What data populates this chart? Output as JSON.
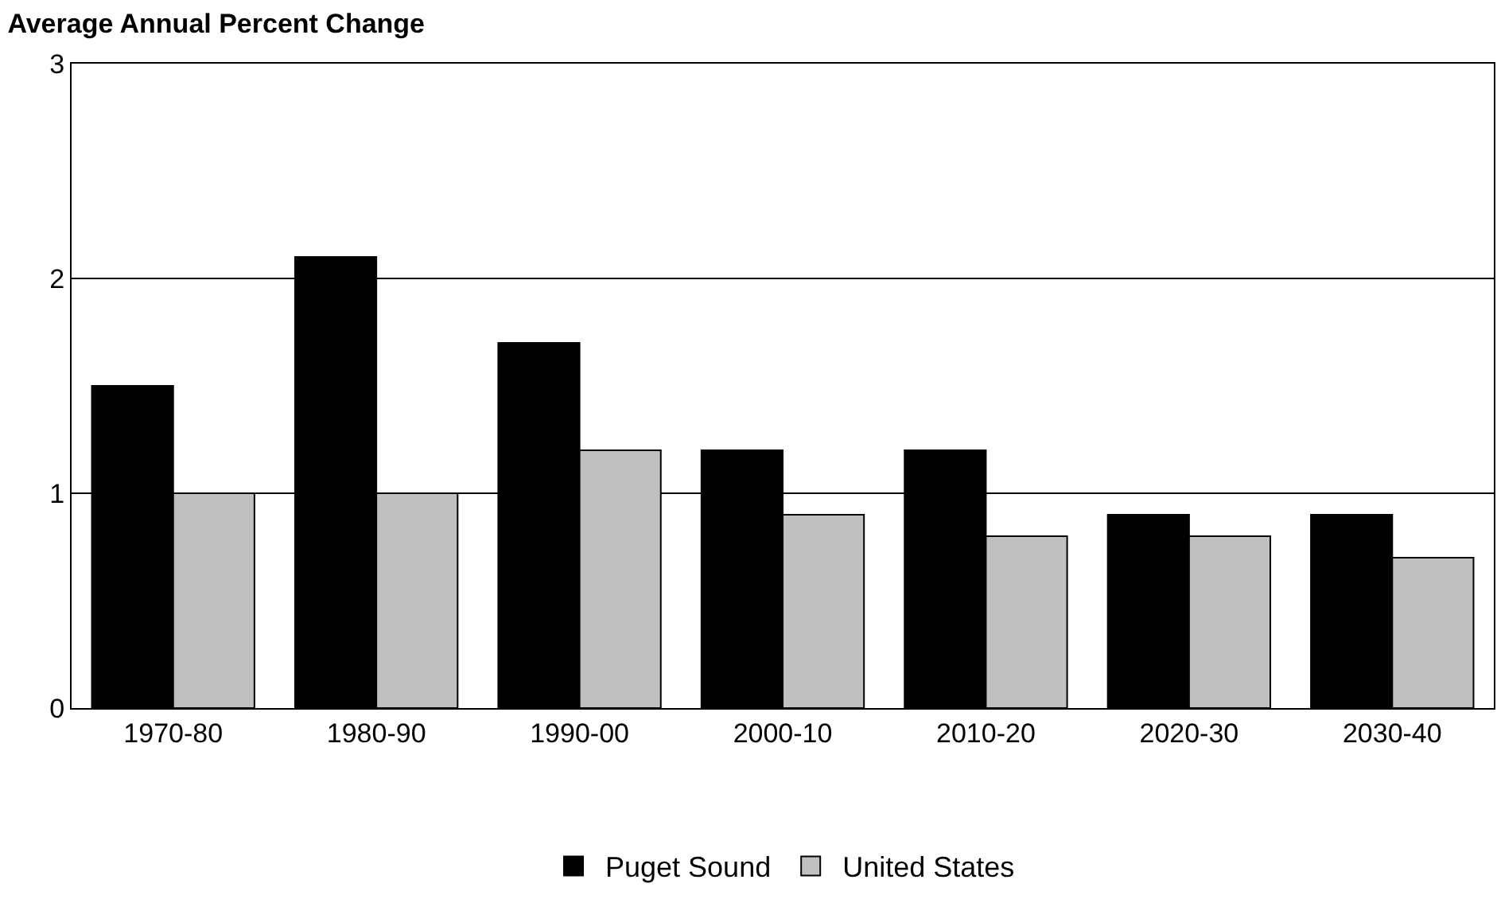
{
  "chart_data": {
    "type": "bar",
    "title": "Average Annual Percent Change",
    "categories": [
      "1970-80",
      "1980-90",
      "1990-00",
      "2000-10",
      "2010-20",
      "2020-30",
      "2030-40"
    ],
    "series": [
      {
        "name": "Puget Sound",
        "color": "#000000",
        "values": [
          1.5,
          2.1,
          1.7,
          1.2,
          1.2,
          0.9,
          0.9
        ]
      },
      {
        "name": "United States",
        "color": "#c0c0c0",
        "values": [
          1.0,
          1.0,
          1.2,
          0.9,
          0.8,
          0.8,
          0.7
        ]
      }
    ],
    "ylim": [
      0,
      3
    ],
    "yticks": [
      0,
      1,
      2,
      3
    ],
    "grid": "y",
    "legend": "bottom"
  }
}
